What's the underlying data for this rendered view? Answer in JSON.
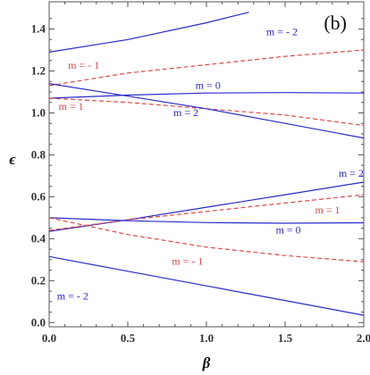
{
  "chart_data": {
    "type": "line",
    "panel_label": "(b)",
    "xlabel": "β",
    "ylabel": "ϵ",
    "xlim": [
      0,
      2
    ],
    "ylim": [
      -0.02,
      1.53
    ],
    "x_ticks": [
      "0.0",
      "0.5",
      "1.0",
      "1.5",
      "2.0"
    ],
    "y_ticks": [
      "0.0",
      "0.2",
      "0.4",
      "0.6",
      "0.8",
      "1.0",
      "1.2",
      "1.4"
    ],
    "grid": false,
    "colors": {
      "blue": "#2a2acc",
      "red": "#e04848"
    },
    "series": [
      {
        "name": "m = - 2",
        "color": "blue",
        "dash": false,
        "points": [
          [
            0,
            1.29
          ],
          [
            0.5,
            1.35
          ],
          [
            1.0,
            1.43
          ],
          [
            1.27,
            1.48
          ]
        ]
      },
      {
        "name": "m = - 1",
        "color": "red",
        "dash": true,
        "points": [
          [
            0,
            1.13
          ],
          [
            0.5,
            1.19
          ],
          [
            1.0,
            1.23
          ],
          [
            1.5,
            1.27
          ],
          [
            2.0,
            1.3
          ]
        ]
      },
      {
        "name": "m = 0",
        "color": "blue",
        "dash": false,
        "points": [
          [
            0,
            1.07
          ],
          [
            0.5,
            1.085
          ],
          [
            1.0,
            1.095
          ],
          [
            1.5,
            1.097
          ],
          [
            2.0,
            1.095
          ]
        ]
      },
      {
        "name": "m = 1",
        "color": "red",
        "dash": true,
        "points": [
          [
            0,
            1.07
          ],
          [
            0.5,
            1.05
          ],
          [
            1.0,
            1.02
          ],
          [
            1.5,
            0.99
          ],
          [
            2.0,
            0.94
          ]
        ]
      },
      {
        "name": "m = 2",
        "color": "blue",
        "dash": false,
        "points": [
          [
            0,
            1.14
          ],
          [
            0.5,
            1.08
          ],
          [
            1.0,
            1.02
          ],
          [
            1.5,
            0.95
          ],
          [
            2.0,
            0.88
          ]
        ]
      },
      {
        "name": "m = 2",
        "color": "blue",
        "dash": false,
        "points": [
          [
            0,
            0.435
          ],
          [
            0.5,
            0.49
          ],
          [
            1.0,
            0.55
          ],
          [
            1.5,
            0.61
          ],
          [
            2.0,
            0.67
          ]
        ]
      },
      {
        "name": "m = 1",
        "color": "red",
        "dash": true,
        "points": [
          [
            0,
            0.44
          ],
          [
            0.5,
            0.49
          ],
          [
            1.0,
            0.53
          ],
          [
            1.5,
            0.57
          ],
          [
            2.0,
            0.61
          ]
        ]
      },
      {
        "name": "m = 0",
        "color": "blue",
        "dash": false,
        "points": [
          [
            0,
            0.5
          ],
          [
            0.5,
            0.486
          ],
          [
            1.0,
            0.477
          ],
          [
            1.5,
            0.474
          ],
          [
            2.0,
            0.476
          ]
        ]
      },
      {
        "name": "m = - 1",
        "color": "red",
        "dash": true,
        "points": [
          [
            0,
            0.5
          ],
          [
            0.5,
            0.42
          ],
          [
            1.0,
            0.36
          ],
          [
            1.5,
            0.32
          ],
          [
            2.0,
            0.29
          ]
        ]
      },
      {
        "name": "m = - 2",
        "color": "blue",
        "dash": false,
        "points": [
          [
            0,
            0.315
          ],
          [
            0.5,
            0.245
          ],
          [
            1.0,
            0.175
          ],
          [
            1.5,
            0.105
          ],
          [
            2.0,
            0.035
          ]
        ]
      }
    ],
    "annotations": [
      {
        "text": "m = - 2",
        "color": "blue",
        "x": 1.38,
        "y": 1.37
      },
      {
        "text": "m = - 1",
        "color": "red",
        "x": 0.12,
        "y": 1.21
      },
      {
        "text": "m = 0",
        "color": "blue",
        "x": 0.93,
        "y": 1.115
      },
      {
        "text": "m = 1",
        "color": "red",
        "x": 0.06,
        "y": 1.015
      },
      {
        "text": "m = 2",
        "color": "blue",
        "x": 0.79,
        "y": 0.985
      },
      {
        "text": "m = 2",
        "color": "blue",
        "x": 1.84,
        "y": 0.695
      },
      {
        "text": "m = 1",
        "color": "red",
        "x": 1.69,
        "y": 0.52
      },
      {
        "text": "m = 0",
        "color": "blue",
        "x": 1.44,
        "y": 0.425
      },
      {
        "text": "m = - 1",
        "color": "red",
        "x": 0.78,
        "y": 0.275
      },
      {
        "text": "m = - 2",
        "color": "blue",
        "x": 0.05,
        "y": 0.11
      }
    ]
  }
}
